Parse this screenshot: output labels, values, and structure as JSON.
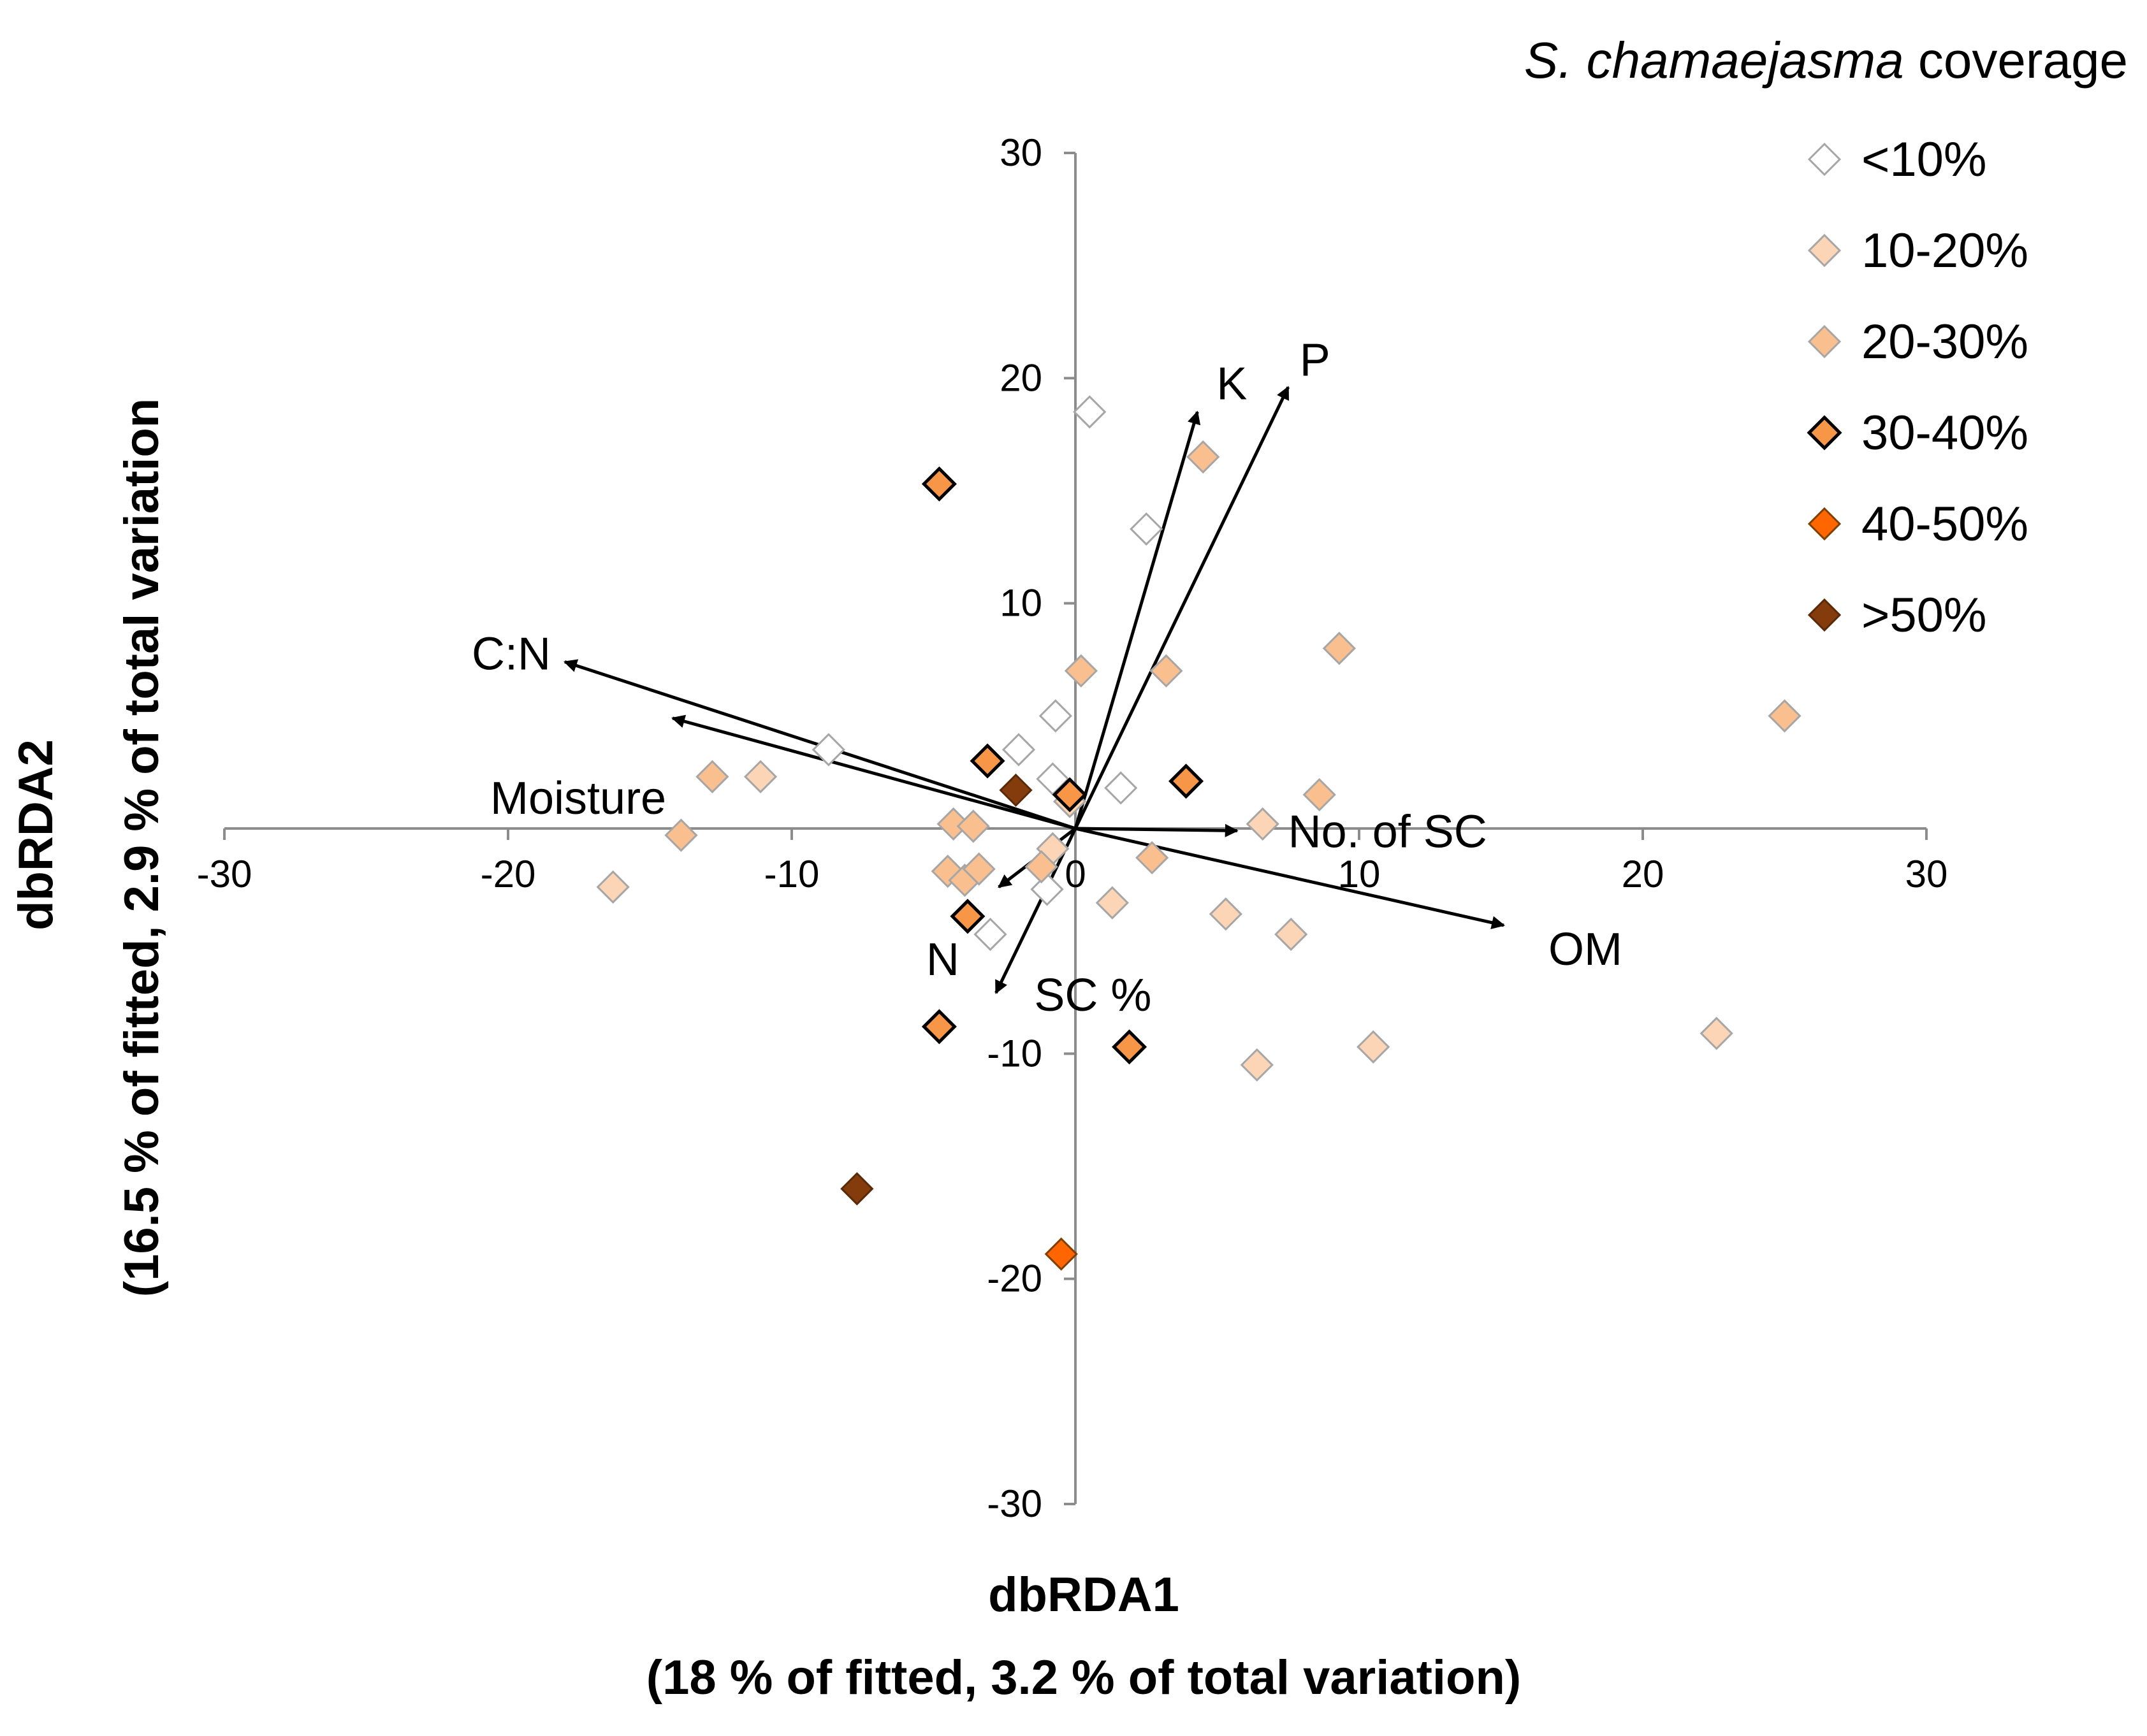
{
  "chart_data": {
    "type": "scatter",
    "xlabel": "dbRDA1",
    "xlabel_sub": "(18 % of fitted, 3.2 % of total variation)",
    "ylabel": "dbRDA2",
    "ylabel_sub": "(16.5 % of fitted, 2.9 % of total variation",
    "xlim": [
      -30,
      30
    ],
    "ylim": [
      -30,
      30
    ],
    "xticks": [
      -30,
      -20,
      -10,
      0,
      10,
      20,
      30
    ],
    "yticks": [
      -30,
      -20,
      -10,
      0,
      10,
      20,
      30
    ],
    "xtick_labels": [
      "-30",
      "-20",
      "-10",
      "0",
      "10",
      "20",
      "30"
    ],
    "ytick_labels": [
      "-30",
      "-20",
      "-10",
      "0",
      "10",
      "20",
      "30"
    ],
    "legend": {
      "title_italic": "S. chamaejasma",
      "title_rest": " coverage",
      "position": "top-right"
    },
    "series": [
      {
        "name": "<10%",
        "fill": "#ffffff",
        "stroke": "#a6a6a6",
        "points": [
          [
            0.5,
            18.5
          ],
          [
            2.5,
            13.3
          ],
          [
            -0.7,
            5
          ],
          [
            -2,
            3.5
          ],
          [
            -8.7,
            3.5
          ],
          [
            -0.8,
            2.2
          ],
          [
            1.6,
            1.8
          ],
          [
            -1,
            -2.7
          ],
          [
            -3,
            -4.7
          ]
        ]
      },
      {
        "name": "10-20%",
        "fill": "#fbd5b5",
        "stroke": "#a6a6a6",
        "points": [
          [
            22.6,
            -9.1
          ],
          [
            6.6,
            0.2
          ],
          [
            5.3,
            -3.8
          ],
          [
            7.6,
            -4.7
          ],
          [
            10.5,
            -9.7
          ],
          [
            6.4,
            -10.5
          ],
          [
            1.3,
            -3.3
          ],
          [
            -0.2,
            1.2
          ],
          [
            -0.8,
            -0.9
          ],
          [
            -11.1,
            2.3
          ],
          [
            -16.3,
            -2.6
          ]
        ]
      },
      {
        "name": "20-30%",
        "fill": "#fabf8f",
        "stroke": "#a6a6a6",
        "points": [
          [
            25,
            5
          ],
          [
            9.3,
            8
          ],
          [
            4.5,
            16.5
          ],
          [
            0.2,
            7
          ],
          [
            3.2,
            7
          ],
          [
            8.6,
            1.5
          ],
          [
            2.7,
            -1.3
          ],
          [
            -12.8,
            2.3
          ],
          [
            -13.9,
            -0.3
          ],
          [
            -4.3,
            0.2
          ],
          [
            -3.6,
            0.1
          ],
          [
            -4.5,
            -1.9
          ],
          [
            -3.9,
            -2.3
          ],
          [
            -3.4,
            -1.8
          ],
          [
            -1.2,
            -1.7
          ]
        ]
      },
      {
        "name": "30-40%",
        "fill": "#f79646",
        "stroke": "#000000",
        "points": [
          [
            -4.8,
            15.3
          ],
          [
            -3.1,
            3
          ],
          [
            -0.2,
            1.5
          ],
          [
            3.9,
            2.1
          ],
          [
            -3.8,
            -3.9
          ],
          [
            -4.8,
            -8.8
          ],
          [
            1.9,
            -9.7
          ]
        ]
      },
      {
        "name": "40-50%",
        "fill": "#ff6600",
        "stroke": "#7f3f00",
        "points": [
          [
            -0.5,
            -18.9
          ]
        ]
      },
      {
        "name": ">50%",
        "fill": "#843c0c",
        "stroke": "#5a2a08",
        "points": [
          [
            -2.1,
            1.7
          ],
          [
            -7.7,
            -16
          ]
        ]
      }
    ],
    "vectors": [
      {
        "name": "K",
        "x": 4.3,
        "y": 18.5
      },
      {
        "name": "P",
        "x": 7.5,
        "y": 19.6
      },
      {
        "name": "C:N",
        "x": -18,
        "y": 7.4
      },
      {
        "name": "Moisture",
        "x": -14.2,
        "y": 4.9
      },
      {
        "name": "No. of SC",
        "x": 5.7,
        "y": -0.1
      },
      {
        "name": "OM",
        "x": 15.1,
        "y": -4.3
      },
      {
        "name": "N",
        "x": -2.7,
        "y": -2.6
      },
      {
        "name": "SC %",
        "x": -2.8,
        "y": -7.3
      }
    ]
  }
}
